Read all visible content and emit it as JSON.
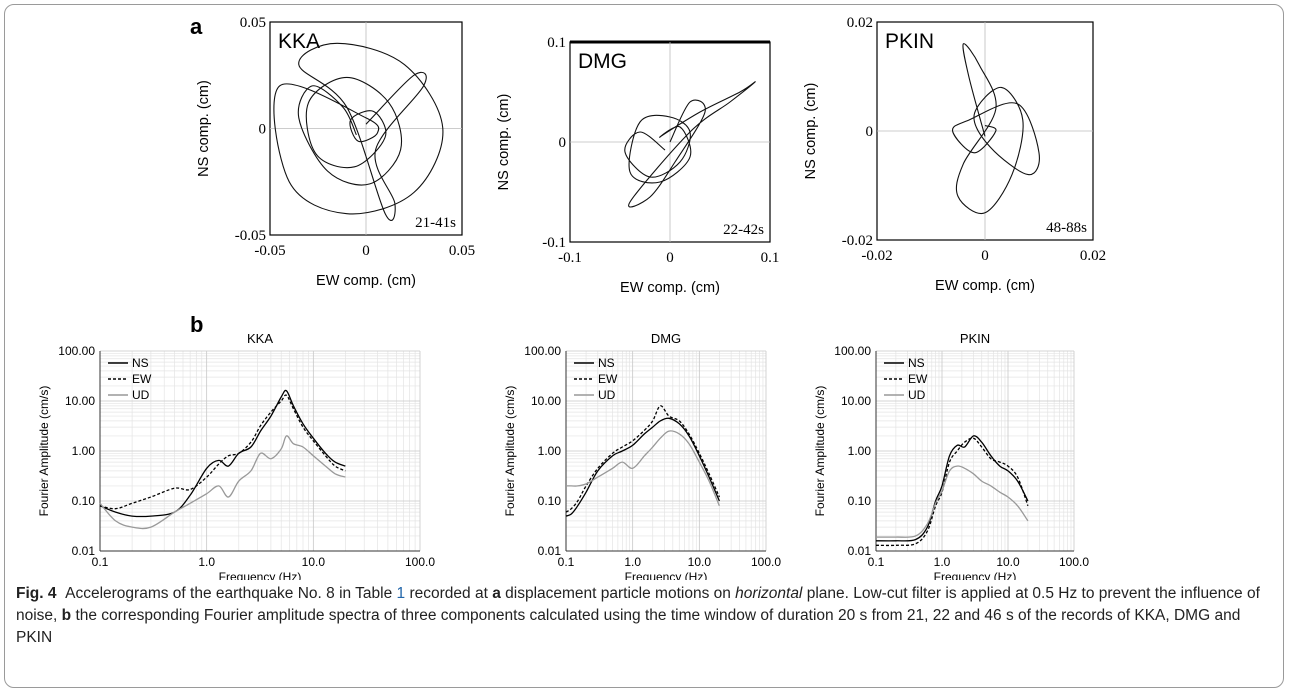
{
  "figure": {
    "panel_a_label": "a",
    "panel_b_label": "b",
    "caption": {
      "fig_label": "Fig. 4",
      "text_1": "Accelerograms of the earthquake No. 8 in Table ",
      "table_ref": "1",
      "text_2": " recorded at ",
      "a_label": "a",
      "text_3": " displacement particle motions on ",
      "horizontal": "horizontal",
      "text_4": " plane. Low-cut filter is applied at 0.5 Hz to prevent the influence of noise, ",
      "b_label": "b",
      "text_5": " the corresponding Fourier amplitude spectra of three components calculated using the time window of duration 20 s from 21, 22 and 46 s of the records of KKA, DMG and PKIN"
    }
  },
  "chart_data": [
    {
      "type": "scatter",
      "station": "KKA",
      "title": "KKA",
      "window": "21-41s",
      "xlabel": "EW comp. (cm)",
      "ylabel": "NS comp. (cm)",
      "xlim": [
        -0.05,
        0.05
      ],
      "ylim": [
        -0.05,
        0.05
      ],
      "xticks": [
        "-0.05",
        "0",
        "0.05"
      ],
      "yticks": [
        "0.05",
        "0",
        "-0.05"
      ],
      "grid": false,
      "particle_motion": [
        [
          -0.005,
          -0.003
        ],
        [
          -0.012,
          0.01
        ],
        [
          -0.028,
          0.02
        ],
        [
          -0.035,
          0.005
        ],
        [
          -0.02,
          -0.02
        ],
        [
          0.002,
          -0.026
        ],
        [
          0.018,
          -0.01
        ],
        [
          0.012,
          0.012
        ],
        [
          -0.01,
          0.024
        ],
        [
          -0.03,
          0.012
        ],
        [
          -0.026,
          -0.012
        ],
        [
          -0.006,
          -0.018
        ],
        [
          0.01,
          -0.004
        ],
        [
          0.004,
          0.008
        ],
        [
          -0.008,
          0.004
        ],
        [
          -0.004,
          -0.006
        ],
        [
          0.006,
          -0.002
        ],
        [
          0.0,
          0.005
        ],
        [
          -0.045,
          0.02
        ],
        [
          -0.04,
          -0.025
        ],
        [
          -0.01,
          -0.04
        ],
        [
          0.025,
          -0.03
        ],
        [
          0.04,
          0.0
        ],
        [
          0.02,
          0.03
        ],
        [
          -0.015,
          0.04
        ],
        [
          -0.035,
          0.03
        ],
        [
          -0.01,
          0.01
        ],
        [
          0.01,
          -0.04
        ],
        [
          0.015,
          -0.035
        ],
        [
          0.005,
          -0.01
        ],
        [
          0.03,
          0.02
        ],
        [
          0.025,
          0.025
        ],
        [
          0.0,
          0.002
        ]
      ]
    },
    {
      "type": "scatter",
      "station": "DMG",
      "title": "DMG",
      "window": "22-42s",
      "xlabel": "EW comp. (cm)",
      "ylabel": "NS comp. (cm)",
      "xlim": [
        -0.1,
        0.1
      ],
      "ylim": [
        -0.1,
        0.1
      ],
      "xticks": [
        "-0.1",
        "0",
        "0.1"
      ],
      "yticks": [
        "0.1",
        "0",
        "-0.1"
      ],
      "grid": false,
      "particle_motion": [
        [
          -0.005,
          -0.008
        ],
        [
          -0.03,
          0.01
        ],
        [
          -0.045,
          -0.01
        ],
        [
          -0.02,
          -0.035
        ],
        [
          0.01,
          -0.02
        ],
        [
          0.02,
          0.01
        ],
        [
          0.0,
          0.025
        ],
        [
          -0.03,
          0.02
        ],
        [
          -0.04,
          -0.03
        ],
        [
          -0.01,
          -0.04
        ],
        [
          0.02,
          -0.015
        ],
        [
          0.01,
          0.015
        ],
        [
          -0.01,
          0.005
        ],
        [
          0.03,
          0.03
        ],
        [
          0.07,
          0.05
        ],
        [
          0.085,
          0.06
        ],
        [
          0.06,
          0.04
        ],
        [
          0.02,
          0.01
        ],
        [
          -0.04,
          -0.06
        ],
        [
          -0.02,
          -0.055
        ],
        [
          0.005,
          -0.02
        ],
        [
          0.035,
          0.03
        ],
        [
          0.02,
          0.04
        ],
        [
          0.0,
          0.0
        ]
      ]
    },
    {
      "type": "scatter",
      "station": "PKIN",
      "title": "PKIN",
      "window": "48-88s",
      "xlabel": "EW comp. (cm)",
      "ylabel": "NS comp. (cm)",
      "xlim": [
        -0.02,
        0.02
      ],
      "ylim": [
        -0.02,
        0.02
      ],
      "xticks": [
        "-0.02",
        "0",
        "0.02"
      ],
      "yticks": [
        "0.02",
        "0",
        "-0.02"
      ],
      "grid": false,
      "particle_motion": [
        [
          0.0,
          -0.001
        ],
        [
          -0.003,
          0.01
        ],
        [
          -0.004,
          0.016
        ],
        [
          -0.001,
          0.012
        ],
        [
          0.002,
          0.004
        ],
        [
          -0.004,
          -0.006
        ],
        [
          -0.005,
          -0.012
        ],
        [
          0.0,
          -0.015
        ],
        [
          0.005,
          -0.008
        ],
        [
          0.007,
          0.002
        ],
        [
          0.003,
          0.008
        ],
        [
          -0.002,
          0.003
        ],
        [
          0.001,
          -0.003
        ],
        [
          0.008,
          -0.008
        ],
        [
          0.01,
          -0.004
        ],
        [
          0.006,
          0.005
        ],
        [
          -0.003,
          0.002
        ],
        [
          -0.006,
          0.0
        ],
        [
          -0.002,
          -0.004
        ],
        [
          0.002,
          0.0
        ],
        [
          0.0,
          0.001
        ]
      ]
    },
    {
      "type": "line",
      "title": "KKA",
      "xlabel": "Frequency (Hz)",
      "ylabel": "Fourier Amplitude (cm/s)",
      "xscale": "log",
      "yscale": "log",
      "xlim": [
        0.1,
        100
      ],
      "ylim": [
        0.01,
        100
      ],
      "xticks": [
        "0.1",
        "1.0",
        "10.0",
        "100.0"
      ],
      "yticks": [
        "100.00",
        "10.00",
        "1.00",
        "0.10",
        "0.01"
      ],
      "grid": true,
      "legend_placement": "top-left",
      "series": [
        {
          "name": "NS",
          "style": "solid",
          "color": "#000000",
          "x": [
            0.1,
            0.14,
            0.2,
            0.3,
            0.5,
            0.7,
            1.0,
            1.3,
            1.6,
            2.0,
            2.6,
            3.2,
            4.0,
            5.0,
            5.6,
            6.5,
            8.0,
            10.0,
            13.0,
            16.0,
            20.0
          ],
          "y": [
            0.08,
            0.06,
            0.05,
            0.05,
            0.06,
            0.13,
            0.45,
            0.65,
            0.5,
            0.9,
            1.2,
            2.5,
            5.0,
            12.0,
            16.0,
            8.0,
            3.5,
            1.8,
            0.9,
            0.6,
            0.5
          ]
        },
        {
          "name": "EW",
          "style": "dashed",
          "color": "#000000",
          "x": [
            0.1,
            0.14,
            0.2,
            0.3,
            0.5,
            0.7,
            1.0,
            1.3,
            1.6,
            2.0,
            2.6,
            3.2,
            4.0,
            5.0,
            5.6,
            6.5,
            8.0,
            10.0,
            13.0,
            16.0,
            20.0
          ],
          "y": [
            0.08,
            0.07,
            0.09,
            0.12,
            0.18,
            0.17,
            0.3,
            0.55,
            0.8,
            0.9,
            1.5,
            3.2,
            6.0,
            10.0,
            13.0,
            7.0,
            3.0,
            1.6,
            0.8,
            0.5,
            0.4
          ]
        },
        {
          "name": "UD",
          "style": "solid",
          "color": "#999999",
          "x": [
            0.1,
            0.14,
            0.2,
            0.3,
            0.5,
            0.7,
            1.0,
            1.3,
            1.6,
            2.0,
            2.6,
            3.2,
            4.0,
            5.0,
            5.6,
            6.5,
            8.0,
            10.0,
            13.0,
            16.0,
            20.0
          ],
          "y": [
            0.09,
            0.04,
            0.03,
            0.03,
            0.06,
            0.09,
            0.14,
            0.2,
            0.12,
            0.25,
            0.4,
            0.9,
            0.7,
            1.1,
            2.0,
            1.4,
            1.2,
            0.8,
            0.5,
            0.35,
            0.3
          ]
        }
      ]
    },
    {
      "type": "line",
      "title": "DMG",
      "xlabel": "Frequency (Hz)",
      "ylabel": "Fourier Amplitude (cm/s)",
      "xscale": "log",
      "yscale": "log",
      "xlim": [
        0.1,
        100
      ],
      "ylim": [
        0.01,
        100
      ],
      "xticks": [
        "0.1",
        "1.0",
        "10.0",
        "100.0"
      ],
      "yticks": [
        "100.00",
        "10.00",
        "1.00",
        "0.10",
        "0.01"
      ],
      "grid": true,
      "legend_placement": "top-left",
      "series": [
        {
          "name": "NS",
          "style": "solid",
          "color": "#000000",
          "x": [
            0.1,
            0.12,
            0.15,
            0.2,
            0.3,
            0.5,
            0.7,
            1.0,
            1.5,
            2.0,
            2.6,
            3.5,
            5.0,
            7.0,
            10.0,
            14.0,
            20.0
          ],
          "y": [
            0.05,
            0.055,
            0.08,
            0.15,
            0.4,
            0.8,
            1.0,
            1.3,
            2.2,
            3.0,
            4.0,
            4.5,
            3.5,
            2.0,
            0.8,
            0.3,
            0.1
          ]
        },
        {
          "name": "EW",
          "style": "dashed",
          "color": "#000000",
          "x": [
            0.1,
            0.12,
            0.15,
            0.2,
            0.3,
            0.5,
            0.7,
            1.0,
            1.5,
            2.0,
            2.6,
            3.5,
            5.0,
            7.0,
            10.0,
            14.0,
            20.0
          ],
          "y": [
            0.06,
            0.07,
            0.1,
            0.2,
            0.45,
            0.9,
            1.2,
            1.6,
            2.6,
            4.0,
            8.0,
            5.0,
            4.0,
            2.2,
            0.9,
            0.35,
            0.12
          ]
        },
        {
          "name": "UD",
          "style": "solid",
          "color": "#999999",
          "x": [
            0.1,
            0.12,
            0.15,
            0.2,
            0.3,
            0.5,
            0.7,
            1.0,
            1.5,
            2.0,
            2.6,
            3.5,
            5.0,
            7.0,
            10.0,
            14.0,
            20.0
          ],
          "y": [
            0.2,
            0.2,
            0.2,
            0.22,
            0.3,
            0.45,
            0.6,
            0.45,
            0.8,
            1.2,
            1.8,
            2.5,
            2.2,
            1.4,
            0.6,
            0.25,
            0.08
          ]
        }
      ]
    },
    {
      "type": "line",
      "title": "PKIN",
      "xlabel": "Frequency (Hz)",
      "ylabel": "Fourier Amplitude (cm/s)",
      "xscale": "log",
      "yscale": "log",
      "xlim": [
        0.1,
        100
      ],
      "ylim": [
        0.01,
        100
      ],
      "xticks": [
        "0.1",
        "1.0",
        "10.0",
        "100.0"
      ],
      "yticks": [
        "100.00",
        "10.00",
        "1.00",
        "0.10",
        "0.01"
      ],
      "grid": true,
      "legend_placement": "top-left",
      "series": [
        {
          "name": "NS",
          "style": "solid",
          "color": "#000000",
          "x": [
            0.1,
            0.2,
            0.4,
            0.6,
            0.8,
            1.0,
            1.3,
            1.7,
            2.2,
            3.0,
            4.0,
            5.5,
            7.5,
            10.0,
            14.0,
            20.0
          ],
          "y": [
            0.016,
            0.016,
            0.017,
            0.03,
            0.1,
            0.2,
            0.8,
            1.3,
            1.2,
            2.0,
            1.5,
            0.8,
            0.5,
            0.4,
            0.25,
            0.1
          ]
        },
        {
          "name": "EW",
          "style": "dashed",
          "color": "#000000",
          "x": [
            0.1,
            0.2,
            0.4,
            0.6,
            0.8,
            1.0,
            1.3,
            1.7,
            2.2,
            3.0,
            4.0,
            5.5,
            7.5,
            10.0,
            14.0,
            20.0
          ],
          "y": [
            0.013,
            0.013,
            0.014,
            0.025,
            0.08,
            0.15,
            0.6,
            1.0,
            1.5,
            1.8,
            1.2,
            0.7,
            0.6,
            0.5,
            0.3,
            0.08
          ]
        },
        {
          "name": "UD",
          "style": "solid",
          "color": "#999999",
          "x": [
            0.1,
            0.2,
            0.4,
            0.6,
            0.8,
            1.0,
            1.3,
            1.7,
            2.2,
            3.0,
            4.0,
            5.5,
            7.5,
            10.0,
            14.0,
            20.0
          ],
          "y": [
            0.019,
            0.019,
            0.02,
            0.035,
            0.09,
            0.16,
            0.4,
            0.5,
            0.45,
            0.35,
            0.25,
            0.2,
            0.15,
            0.12,
            0.08,
            0.04
          ]
        }
      ]
    }
  ]
}
